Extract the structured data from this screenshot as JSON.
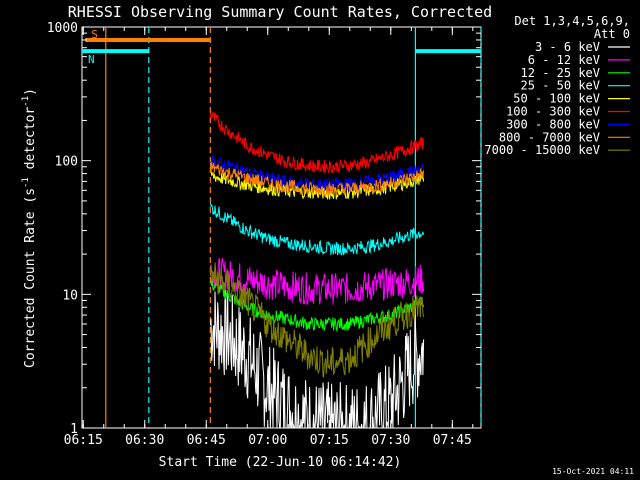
{
  "chart_data": {
    "type": "line",
    "title": "RHESSI Observing Summary Count Rates, Corrected",
    "xlabel": "Start Time (22-Jun-10 06:14:42)",
    "ylabel_main": "Corrected Count Rate (s",
    "ylabel_sup1": "-1",
    "ylabel_mid": " detector",
    "ylabel_sup2": "-1",
    "ylabel_end": ")",
    "y_scale": "log",
    "ylim": [
      1,
      1000
    ],
    "xlim": [
      "06:14:42",
      "07:52:00"
    ],
    "x_ticks": [
      "06:15",
      "06:30",
      "06:45",
      "07:00",
      "07:15",
      "07:30",
      "07:45"
    ],
    "y_ticks": [
      "1",
      "10",
      "100",
      "1000"
    ],
    "grid": false,
    "legend_position": "top-right",
    "legend_header": [
      "Det 1,3,4,5,6,9,",
      "Att 0"
    ],
    "footer_date": "15-Oct-2021 04:11",
    "flags": [
      {
        "label": "S",
        "color": "#ff8000",
        "start": "06:15:30",
        "end": "06:46:00",
        "level": 800
      },
      {
        "label": "N",
        "color": "#00ffff",
        "start": "06:14:42",
        "end": "06:31:00",
        "level": 660
      },
      {
        "label": "",
        "color": "#00ffff",
        "start": "07:36:00",
        "end": "07:52:00",
        "level": 660
      }
    ],
    "vlines": [
      {
        "time": "06:20:30",
        "color": "#ff8000",
        "style": "solid"
      },
      {
        "time": "06:31:00",
        "color": "#00ffff",
        "style": "dashed"
      },
      {
        "time": "06:46:00",
        "color": "#ff8000",
        "style": "dashed"
      },
      {
        "time": "07:36:00",
        "color": "#00ffff",
        "style": "solid"
      },
      {
        "time": "07:52:00",
        "color": "#00ffff",
        "style": "dashed"
      }
    ],
    "x": [
      "06:46",
      "06:50",
      "06:55",
      "07:00",
      "07:05",
      "07:10",
      "07:15",
      "07:20",
      "07:25",
      "07:30",
      "07:35",
      "07:38"
    ],
    "series": [
      {
        "name": "3 - 6 keV",
        "color": "#ffffff",
        "values": [
          6,
          5,
          3.5,
          2,
          1.4,
          1.1,
          1.0,
          1.0,
          1.1,
          1.5,
          3,
          4
        ]
      },
      {
        "name": "6 - 12 keV",
        "color": "#ff00ff",
        "values": [
          15,
          14,
          13,
          12,
          11.5,
          11,
          11,
          11,
          11.5,
          12,
          12.5,
          13
        ]
      },
      {
        "name": "12 - 25 keV",
        "color": "#00ff00",
        "values": [
          12,
          10,
          8,
          7,
          6.5,
          6,
          6,
          6,
          6.5,
          7,
          8,
          9
        ]
      },
      {
        "name": "25 - 50 keV",
        "color": "#00ffff",
        "values": [
          45,
          37,
          30,
          26,
          24,
          23,
          22,
          22,
          23,
          25,
          28,
          29
        ]
      },
      {
        "name": "50 - 100 keV",
        "color": "#ffff00",
        "values": [
          78,
          72,
          66,
          62,
          59,
          58,
          57,
          58,
          60,
          64,
          70,
          75
        ]
      },
      {
        "name": "100 - 300 keV",
        "color": "#ff0000",
        "values": [
          220,
          170,
          130,
          110,
          98,
          92,
          90,
          92,
          98,
          110,
          125,
          135
        ]
      },
      {
        "name": "300 - 800 keV",
        "color": "#0000ff",
        "values": [
          100,
          92,
          82,
          74,
          69,
          67,
          66,
          67,
          70,
          75,
          82,
          86
        ]
      },
      {
        "name": "800 - 7000 keV",
        "color": "#ff8000",
        "values": [
          90,
          82,
          74,
          68,
          64,
          62,
          61,
          62,
          64,
          68,
          75,
          80
        ]
      },
      {
        "name": "7000 - 15000 keV",
        "color": "#808000",
        "values": [
          14,
          12,
          9,
          6,
          4.5,
          3.5,
          3,
          3.3,
          4.5,
          6,
          7.5,
          8
        ]
      }
    ]
  }
}
